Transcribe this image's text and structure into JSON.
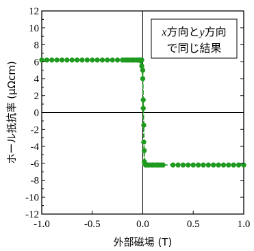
{
  "chart_data": {
    "type": "line",
    "title": "",
    "xlabel": "外部磁場 (T)",
    "ylabel": "ホール抵抗率 (μΩcm)",
    "xlim": [
      -1.0,
      1.0
    ],
    "ylim": [
      -12,
      12
    ],
    "x_ticks": [
      -1.0,
      -0.5,
      0.0,
      0.5,
      1.0
    ],
    "x_tick_labels": [
      "-1.0",
      "-0.5",
      "0.0",
      "0.5",
      "1.0"
    ],
    "y_ticks": [
      -12,
      -10,
      -8,
      -6,
      -4,
      -2,
      0,
      2,
      4,
      6,
      8,
      10,
      12
    ],
    "y_tick_labels": [
      "-12",
      "-10",
      "-8",
      "-6",
      "-4",
      "-2",
      "0",
      "2",
      "4",
      "6",
      "8",
      "10",
      "12"
    ],
    "grid": false,
    "zero_lines": true,
    "annotation": {
      "line1": [
        {
          "text": "x",
          "italic": true
        },
        {
          "text": "方向と",
          "italic": false
        },
        {
          "text": "y",
          "italic": true
        },
        {
          "text": "方向",
          "italic": false
        }
      ],
      "line2": "で同じ結果",
      "placement": "top-right"
    },
    "series": [
      {
        "color": "#1f9a1f",
        "marker": "circle",
        "line_style": "dashed",
        "points": [
          [
            -1.0,
            6.2
          ],
          [
            -0.95,
            6.2
          ],
          [
            -0.9,
            6.2
          ],
          [
            -0.85,
            6.2
          ],
          [
            -0.8,
            6.2
          ],
          [
            -0.75,
            6.2
          ],
          [
            -0.7,
            6.2
          ],
          [
            -0.65,
            6.2
          ],
          [
            -0.6,
            6.2
          ],
          [
            -0.55,
            6.2
          ],
          [
            -0.5,
            6.2
          ],
          [
            -0.45,
            6.2
          ],
          [
            -0.4,
            6.2
          ],
          [
            -0.35,
            6.2
          ],
          [
            -0.3,
            6.2
          ],
          [
            -0.25,
            6.2
          ],
          [
            -0.2,
            6.2
          ],
          [
            -0.18,
            6.2
          ],
          [
            -0.16,
            6.2
          ],
          [
            -0.14,
            6.2
          ],
          [
            -0.12,
            6.2
          ],
          [
            -0.1,
            6.2
          ],
          [
            -0.08,
            6.2
          ],
          [
            -0.06,
            6.2
          ],
          [
            -0.04,
            6.2
          ],
          [
            -0.02,
            6.1
          ],
          [
            -0.01,
            5.5
          ],
          [
            0.0,
            4.0
          ],
          [
            0.005,
            0.5
          ],
          [
            0.01,
            -3.5
          ],
          [
            0.015,
            -5.8
          ],
          [
            0.02,
            -6.1
          ],
          [
            0.03,
            -6.2
          ],
          [
            0.04,
            -6.2
          ],
          [
            0.06,
            -6.2
          ],
          [
            0.08,
            -6.2
          ],
          [
            0.1,
            -6.2
          ],
          [
            0.12,
            -6.2
          ],
          [
            0.14,
            -6.2
          ],
          [
            0.16,
            -6.2
          ],
          [
            0.18,
            -6.2
          ],
          [
            0.2,
            -6.2
          ],
          [
            0.3,
            -6.2
          ],
          [
            0.35,
            -6.2
          ],
          [
            0.4,
            -6.2
          ],
          [
            0.45,
            -6.2
          ],
          [
            0.5,
            -6.2
          ],
          [
            0.55,
            -6.2
          ],
          [
            0.6,
            -6.2
          ],
          [
            0.65,
            -6.2
          ],
          [
            0.7,
            -6.2
          ],
          [
            0.75,
            -6.2
          ],
          [
            0.8,
            -6.2
          ],
          [
            0.85,
            -6.2
          ],
          [
            0.9,
            -6.2
          ],
          [
            0.95,
            -6.2
          ],
          [
            1.0,
            -6.2
          ]
        ]
      },
      {
        "color": "#1f9a1f",
        "marker": "circle",
        "line_style": "dashed",
        "points": [
          [
            -0.2,
            6.2
          ],
          [
            -0.15,
            6.2
          ],
          [
            -0.1,
            6.2
          ],
          [
            -0.05,
            6.2
          ],
          [
            -0.03,
            6.2
          ],
          [
            -0.02,
            6.2
          ],
          [
            -0.01,
            6.2
          ],
          [
            0.0,
            5.0
          ],
          [
            0.005,
            1.5
          ],
          [
            0.01,
            -1.5
          ],
          [
            0.015,
            -4.5
          ],
          [
            0.02,
            -6.0
          ],
          [
            0.03,
            -6.2
          ],
          [
            0.05,
            -6.2
          ],
          [
            0.1,
            -6.2
          ],
          [
            0.15,
            -6.2
          ],
          [
            0.2,
            -6.2
          ]
        ]
      }
    ]
  }
}
